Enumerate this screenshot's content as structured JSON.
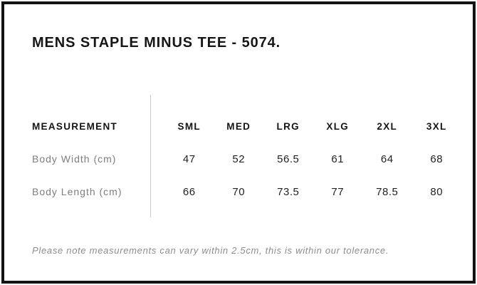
{
  "page": {
    "title": "MENS STAPLE MINUS TEE - 5074."
  },
  "size_chart": {
    "measurement_header": "MEASUREMENT",
    "size_headers": [
      "SML",
      "MED",
      "LRG",
      "XLG",
      "2XL",
      "3XL"
    ],
    "rows": [
      {
        "label": "Body Width (cm)",
        "values": [
          "47",
          "52",
          "56.5",
          "61",
          "64",
          "68"
        ]
      },
      {
        "label": "Body Length (cm)",
        "values": [
          "66",
          "70",
          "73.5",
          "77",
          "78.5",
          "80"
        ]
      }
    ]
  },
  "note": {
    "text": "Please note measurements can vary within 2.5cm, this is within our tolerance."
  },
  "colors": {
    "background": "#ffffff",
    "frame": "#131313",
    "text_primary": "#141414",
    "text_values": "#222222",
    "text_muted": "#7e7e7e",
    "note_text": "#8d8d8d",
    "divider": "#c9c9c9"
  }
}
